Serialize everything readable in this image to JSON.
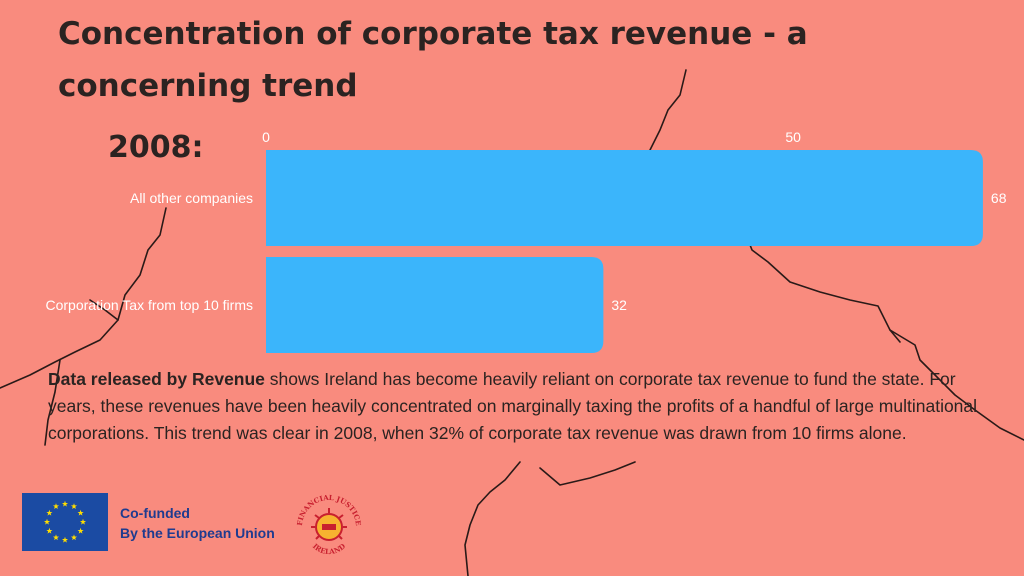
{
  "title": "Concentration of corporate tax revenue - a concerning trend",
  "year_label": "2008:",
  "chart_data": {
    "type": "bar",
    "orientation": "horizontal",
    "categories": [
      "All other companies",
      "Corporation Tax from top 10 firms"
    ],
    "values": [
      68,
      32
    ],
    "value_labels": [
      "68",
      "32"
    ],
    "x_ticks": [
      0,
      50
    ],
    "x_tick_labels": [
      "0",
      "50"
    ],
    "xlim": [
      0,
      70
    ],
    "bar_color": "#3bb5fb",
    "grid": false,
    "legend": false
  },
  "paragraph": {
    "bold_lead": "Data released by Revenue",
    "rest": " shows Ireland has become heavily reliant on corporate tax revenue to fund the state. For years, these revenues have been heavily concentrated on marginally taxing the profits of a handful of large multinational corporations. This trend was clear in 2008, when 32% of corporate tax revenue was drawn from 10 firms alone."
  },
  "footer": {
    "cofunded_line1": "Co-funded",
    "cofunded_line2": "By the European Union",
    "eu_flag_icon": "eu-flag-icon",
    "logo_text_top": "FINANCIAL JUSTICE",
    "logo_text_bottom": "IRELAND",
    "logo_icon": "financial-justice-ireland-logo"
  },
  "colors": {
    "background": "#f98b7e",
    "bar": "#3bb5fb",
    "title": "#2b2321",
    "eu_blue": "#1b4ba3",
    "eu_star": "#ffdd00",
    "footer_text": "#1f3b8f",
    "logo_red": "#c8202f"
  }
}
